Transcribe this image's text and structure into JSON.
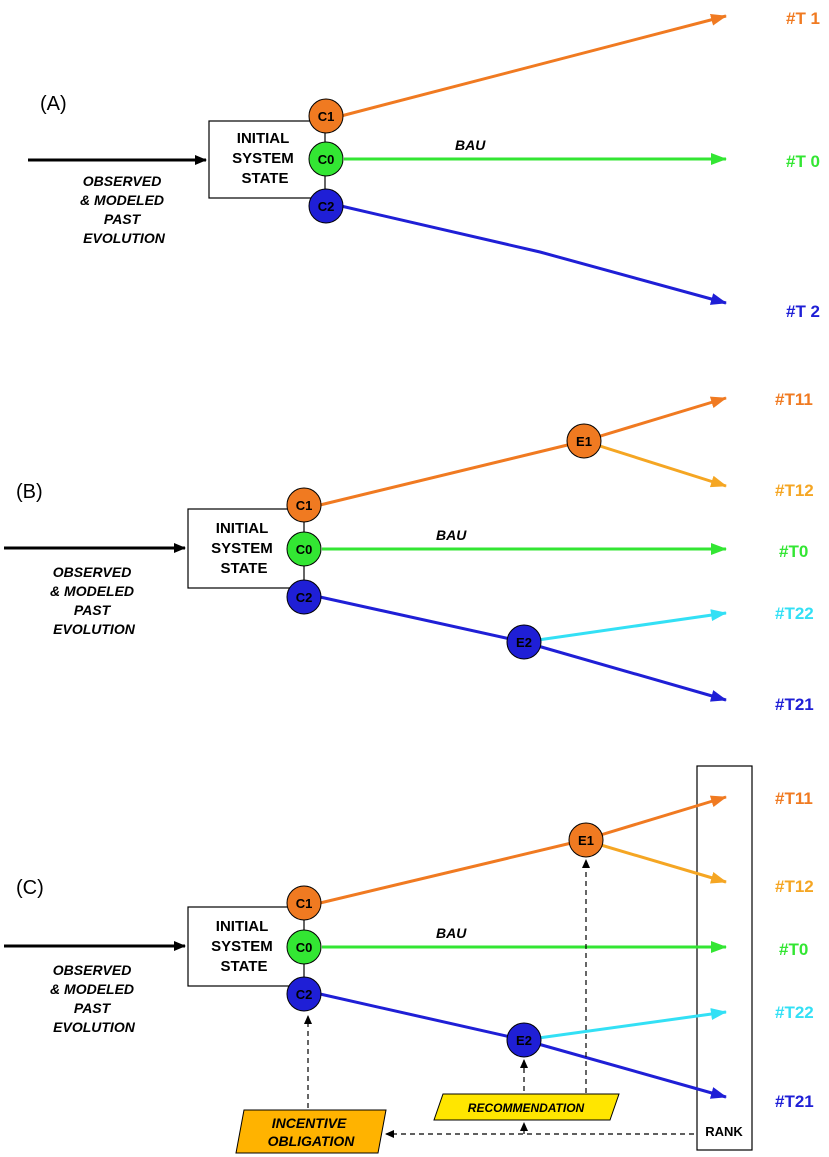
{
  "colors": {
    "orange": "#f07a21",
    "light_orange": "#f5a623",
    "green": "#33e633",
    "blue": "#1f1fd6",
    "cyan": "#33e0f5",
    "yellow": "#ffe600",
    "orange_box": "#ffb300"
  },
  "common": {
    "initial_line1": "INITIAL",
    "initial_line2": "SYSTEM",
    "initial_line3": "STATE",
    "past_line1": "OBSERVED",
    "past_line2": "& MODELED",
    "past_line3": "PAST",
    "past_line4": "EVOLUTION",
    "bau": "BAU"
  },
  "panel_a": {
    "label": "(A)",
    "nodes": {
      "c1": "C1",
      "c0": "C0",
      "c2": "C2"
    },
    "targets": {
      "t1": "#T 1",
      "t0": "#T 0",
      "t2": "#T 2"
    }
  },
  "panel_b": {
    "label": "(B)",
    "nodes": {
      "c1": "C1",
      "c0": "C0",
      "c2": "C2",
      "e1": "E1",
      "e2": "E2"
    },
    "targets": {
      "t11": "#T11",
      "t12": "#T12",
      "t0": "#T0",
      "t22": "#T22",
      "t21": "#T21"
    }
  },
  "panel_c": {
    "label": "(C)",
    "nodes": {
      "c1": "C1",
      "c0": "C0",
      "c2": "C2",
      "e1": "E1",
      "e2": "E2"
    },
    "targets": {
      "t11": "#T11",
      "t12": "#T12",
      "t0": "#T0",
      "t22": "#T22",
      "t21": "#T21"
    },
    "recommendation": "RECOMMENDATION",
    "incentive_line1": "INCENTIVE",
    "incentive_line2": "OBLIGATION",
    "rank": "RANK"
  }
}
